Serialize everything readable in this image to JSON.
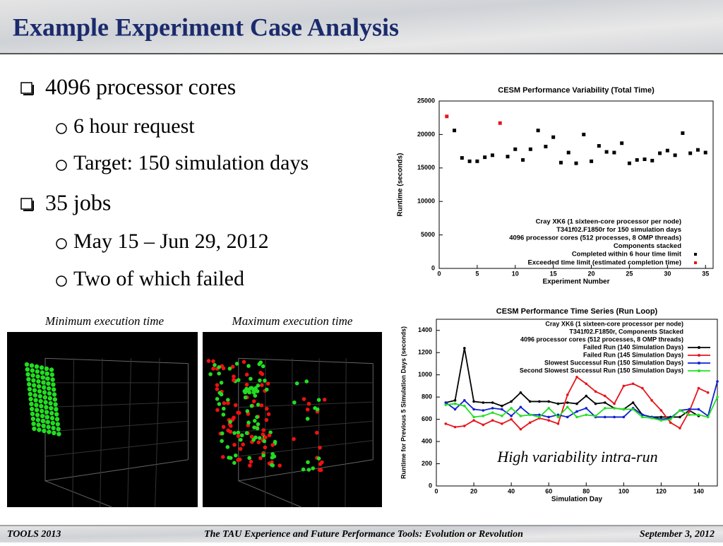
{
  "header": {
    "title": "Example Experiment Case Analysis"
  },
  "bullets": [
    {
      "text": "4096 processor cores",
      "sub": [
        "6 hour request",
        "Target: 150 simulation days"
      ]
    },
    {
      "text": "35 jobs",
      "sub": [
        "May 15 – Jun 29, 2012",
        "Two of which failed"
      ]
    }
  ],
  "captions": [
    "Minimum execution time",
    "Maximum execution time"
  ],
  "overlay": "High variability intra-run",
  "footer": {
    "left": "TOOLS 2013",
    "center": "The TAU Experience and Future Performance Tools: Evolution or Revolution",
    "right": "September 3, 2012"
  },
  "chart_data": [
    {
      "type": "scatter",
      "title": "CESM Performance Variability (Total Time)",
      "x_label": "Experiment Number",
      "y_label": "Runtime (seconds)",
      "annotations": [
        "Cray XK6 (1 sixteen-core processor per node)",
        "T341f02.F1850r for 150 simulation days",
        "4096 processor cores (512 processes, 8 OMP threads)",
        "Components stacked"
      ],
      "series": [
        {
          "name": "Completed within 6 hour time limit",
          "color": "#000000",
          "x": [
            2,
            3,
            4,
            5,
            6,
            7,
            9,
            10,
            11,
            12,
            13,
            14,
            15,
            16,
            17,
            18,
            19,
            20,
            21,
            22,
            23,
            24,
            25,
            26,
            27,
            28,
            29,
            30,
            31,
            32,
            33,
            34,
            35
          ],
          "values": [
            20600,
            16500,
            16000,
            16000,
            16600,
            16900,
            16700,
            17800,
            16200,
            17800,
            20600,
            18200,
            19600,
            15800,
            17300,
            15700,
            20000,
            16000,
            18300,
            17400,
            17300,
            18700,
            15700,
            16200,
            16300,
            16100,
            17200,
            17600,
            16900,
            20200,
            17200,
            17700,
            17300
          ]
        },
        {
          "name": "Exceeded time limit (estimated completion time)",
          "color": "#e8141c",
          "x": [
            1,
            8
          ],
          "values": [
            22700,
            21700
          ]
        }
      ],
      "xlim": [
        0,
        36
      ],
      "xticks": [
        0,
        5,
        10,
        15,
        20,
        25,
        30,
        35
      ],
      "ylim": [
        0,
        25000
      ],
      "yticks": [
        0,
        5000,
        10000,
        15000,
        20000,
        25000
      ]
    },
    {
      "type": "line",
      "title": "CESM Performance Time Series (Run Loop)",
      "x_label": "Simulation Day",
      "y_label": "Runtime for Previous 5 Simulation Days (seconds)",
      "annotations": [
        "Cray XK6 (1 sixteen-core processor per node)",
        "T341f02.F1850r, Components Stacked",
        "4096 processor cores (512 processes, 8 OMP threads)"
      ],
      "x": [
        5,
        10,
        15,
        20,
        25,
        30,
        35,
        40,
        45,
        50,
        55,
        60,
        65,
        70,
        75,
        80,
        85,
        90,
        95,
        100,
        105,
        110,
        115,
        120,
        125,
        130,
        135,
        140,
        145,
        150
      ],
      "series": [
        {
          "name": "Failed Run (140 Simulation Days)",
          "color": "#000000",
          "values": [
            750,
            770,
            1240,
            760,
            750,
            750,
            720,
            760,
            840,
            760,
            760,
            760,
            740,
            750,
            740,
            810,
            740,
            750,
            700,
            690,
            750,
            640,
            620,
            620,
            620,
            620,
            680,
            630,
            null,
            null
          ]
        },
        {
          "name": "Failed Run (145 Simulation Days)",
          "color": "#e8141c",
          "values": [
            560,
            530,
            540,
            590,
            550,
            590,
            560,
            600,
            510,
            570,
            610,
            590,
            560,
            820,
            980,
            920,
            850,
            810,
            740,
            900,
            920,
            880,
            770,
            680,
            570,
            520,
            670,
            880,
            840,
            null
          ]
        },
        {
          "name": "Slowest Successul Run (150 Simulation Days)",
          "color": "#1020d0",
          "values": [
            750,
            690,
            770,
            690,
            680,
            700,
            690,
            630,
            710,
            640,
            640,
            620,
            640,
            620,
            670,
            700,
            620,
            620,
            620,
            620,
            700,
            640,
            620,
            600,
            610,
            680,
            690,
            690,
            630,
            940
          ]
        },
        {
          "name": "Second Slowest Successul Run (150 Simulation Days)",
          "color": "#22e022",
          "values": [
            730,
            740,
            720,
            620,
            630,
            660,
            630,
            700,
            630,
            640,
            620,
            700,
            620,
            710,
            620,
            640,
            630,
            700,
            700,
            690,
            690,
            620,
            610,
            590,
            600,
            680,
            640,
            640,
            620,
            800
          ]
        }
      ],
      "xlim": [
        0,
        150
      ],
      "xticks": [
        0,
        20,
        40,
        60,
        80,
        100,
        120,
        140
      ],
      "ylim": [
        0,
        1500
      ],
      "yticks": [
        0,
        200,
        400,
        600,
        800,
        1000,
        1200,
        1400
      ]
    }
  ]
}
